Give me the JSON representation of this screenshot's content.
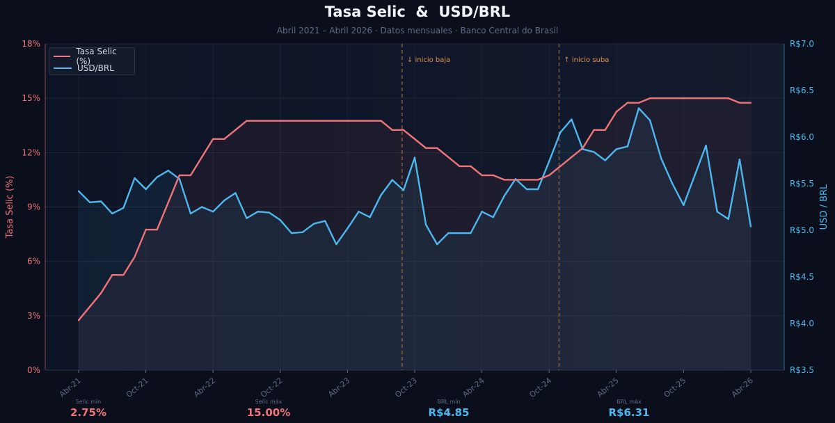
{
  "header": {
    "title": "Tasa Selic  &  USD/BRL",
    "subtitle": "Abril 2021 – Abril 2026 · Datos mensuales · Banco Central do Brasil"
  },
  "colors": {
    "background": "#0b0f1c",
    "selic": "#f07478",
    "brl": "#4cb8ee",
    "event": "#e0904a",
    "muted": "#5f6b86"
  },
  "legend": {
    "placement": "top-left",
    "items": [
      {
        "label": "Tasa Selic (%)",
        "color": "#f07478"
      },
      {
        "label": "USD/BRL",
        "color": "#4cb8ee"
      }
    ]
  },
  "stats": [
    {
      "label": "Selic mín",
      "value": "2.75%",
      "color": "#f07478"
    },
    {
      "label": "Selic máx",
      "value": "15.00%",
      "color": "#f07478"
    },
    {
      "label": "BRL mín",
      "value": "R$4.85",
      "color": "#4cb8ee"
    },
    {
      "label": "BRL máx",
      "value": "R$6.31",
      "color": "#4cb8ee"
    }
  ],
  "chart_data": {
    "type": "line",
    "title": "Tasa Selic  &  USD/BRL",
    "subtitle": "Abril 2021 – Abril 2026 · Datos mensuales · Banco Central do Brasil",
    "x": [
      "2021-04",
      "2021-05",
      "2021-06",
      "2021-07",
      "2021-08",
      "2021-09",
      "2021-10",
      "2021-11",
      "2021-12",
      "2022-01",
      "2022-02",
      "2022-03",
      "2022-04",
      "2022-05",
      "2022-06",
      "2022-07",
      "2022-08",
      "2022-09",
      "2022-10",
      "2022-11",
      "2022-12",
      "2023-01",
      "2023-02",
      "2023-03",
      "2023-04",
      "2023-05",
      "2023-06",
      "2023-07",
      "2023-08",
      "2023-09",
      "2023-10",
      "2023-11",
      "2023-12",
      "2024-01",
      "2024-02",
      "2024-03",
      "2024-04",
      "2024-05",
      "2024-06",
      "2024-07",
      "2024-08",
      "2024-09",
      "2024-10",
      "2024-11",
      "2024-12",
      "2025-01",
      "2025-02",
      "2025-03",
      "2025-04",
      "2025-05",
      "2025-06",
      "2025-07",
      "2025-08",
      "2025-09",
      "2025-10",
      "2025-11",
      "2025-12",
      "2026-01",
      "2026-02",
      "2026-03",
      "2026-04"
    ],
    "x_tick_labels": [
      "Abr-21",
      "Oct-21",
      "Abr-22",
      "Oct-22",
      "Abr-23",
      "Oct-23",
      "Abr-24",
      "Oct-24",
      "Abr-25",
      "Oct-25",
      "Abr-26"
    ],
    "x_tick_index": [
      0,
      6,
      12,
      18,
      24,
      30,
      36,
      42,
      48,
      54,
      60
    ],
    "grid": true,
    "series": [
      {
        "name": "Tasa Selic (%)",
        "axis": "left",
        "color": "#f07478",
        "values": [
          2.75,
          3.5,
          4.25,
          5.25,
          5.25,
          6.25,
          7.75,
          7.75,
          9.25,
          10.75,
          10.75,
          11.75,
          12.75,
          12.75,
          13.25,
          13.75,
          13.75,
          13.75,
          13.75,
          13.75,
          13.75,
          13.75,
          13.75,
          13.75,
          13.75,
          13.75,
          13.75,
          13.75,
          13.25,
          13.25,
          12.75,
          12.25,
          12.25,
          11.75,
          11.25,
          11.25,
          10.75,
          10.75,
          10.5,
          10.5,
          10.5,
          10.5,
          10.75,
          11.25,
          11.75,
          12.25,
          13.25,
          13.25,
          14.25,
          14.75,
          14.75,
          15,
          15,
          15,
          15,
          15,
          15,
          15,
          15,
          14.75,
          14.75
        ]
      },
      {
        "name": "USD/BRL",
        "axis": "right",
        "color": "#4cb8ee",
        "values": [
          5.42,
          5.3,
          5.31,
          5.18,
          5.24,
          5.56,
          5.44,
          5.57,
          5.64,
          5.55,
          5.18,
          5.25,
          5.2,
          5.32,
          5.4,
          5.13,
          5.2,
          5.19,
          5.11,
          4.97,
          4.98,
          5.07,
          5.1,
          4.85,
          5.02,
          5.2,
          5.14,
          5.38,
          5.54,
          5.43,
          5.78,
          5.06,
          4.85,
          4.97,
          4.97,
          4.97,
          5.2,
          5.14,
          5.37,
          5.55,
          5.44,
          5.44,
          5.74,
          6.05,
          6.19,
          5.87,
          5.84,
          5.75,
          5.87,
          5.9,
          6.31,
          6.18,
          5.77,
          5.5,
          5.27,
          5.59,
          5.91,
          5.2,
          5.12,
          5.76,
          5.04
        ]
      }
    ],
    "y_left": {
      "label": "Tasa Selic (%)",
      "min": 0,
      "max": 18,
      "ticks": [
        0,
        3,
        6,
        9,
        12,
        15,
        18
      ],
      "tick_labels": [
        "0%",
        "3%",
        "6%",
        "9%",
        "12%",
        "15%",
        "18%"
      ]
    },
    "y_right": {
      "label": "USD / BRL",
      "min": 3.5,
      "max": 7.0,
      "ticks": [
        3.5,
        4.0,
        4.5,
        5.0,
        5.5,
        6.0,
        6.5,
        7.0
      ],
      "tick_labels": [
        "R$3.5",
        "R$4.0",
        "R$4.5",
        "R$5.0",
        "R$5.5",
        "R$6.0",
        "R$6.5",
        "R$7.0"
      ]
    },
    "annotations": [
      {
        "x_index": 29,
        "text": "↓ inicio baja",
        "color": "#e0904a"
      },
      {
        "x_index": 43,
        "text": "↑ inicio suba",
        "color": "#e0904a"
      }
    ]
  }
}
